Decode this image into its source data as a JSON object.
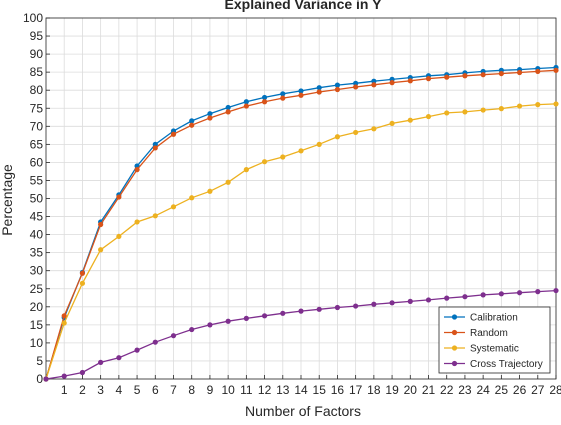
{
  "chart_data": {
    "type": "line",
    "title": "Explained Variance in Y",
    "xlabel": "Number of Factors",
    "ylabel": "Percentage",
    "xlim": [
      0,
      28
    ],
    "ylim": [
      0,
      100
    ],
    "x_ticks": [
      1,
      2,
      3,
      4,
      5,
      6,
      7,
      8,
      9,
      10,
      11,
      12,
      13,
      14,
      15,
      16,
      17,
      18,
      19,
      20,
      21,
      22,
      23,
      24,
      25,
      26,
      27,
      28
    ],
    "y_ticks": [
      0,
      5,
      10,
      15,
      20,
      25,
      30,
      35,
      40,
      45,
      50,
      55,
      60,
      65,
      70,
      75,
      80,
      85,
      90,
      95,
      100
    ],
    "grid": true,
    "legend_position": "bottom-right",
    "x": [
      0,
      1,
      2,
      3,
      4,
      5,
      6,
      7,
      8,
      9,
      10,
      11,
      12,
      13,
      14,
      15,
      16,
      17,
      18,
      19,
      20,
      21,
      22,
      23,
      24,
      25,
      26,
      27,
      28
    ],
    "series": [
      {
        "name": "Calibration",
        "color": "#0072BD",
        "values": [
          0,
          17,
          29.5,
          43.5,
          51,
          59,
          65,
          68.7,
          71.5,
          73.5,
          75.2,
          76.8,
          78,
          79,
          79.8,
          80.7,
          81.4,
          81.9,
          82.5,
          83,
          83.5,
          84,
          84.3,
          84.8,
          85.2,
          85.5,
          85.7,
          86,
          86.3
        ]
      },
      {
        "name": "Random",
        "color": "#D95319",
        "values": [
          0,
          17.5,
          29.3,
          42.8,
          50.4,
          58,
          64,
          67.8,
          70.3,
          72.3,
          74,
          75.6,
          76.8,
          77.8,
          78.6,
          79.5,
          80.2,
          80.9,
          81.5,
          82.1,
          82.6,
          83.2,
          83.6,
          84,
          84.3,
          84.6,
          84.9,
          85.2,
          85.5
        ]
      },
      {
        "name": "Systematic",
        "color": "#EDB120",
        "values": [
          0,
          15.5,
          26.5,
          35.8,
          39.5,
          43.5,
          45.2,
          47.7,
          50.2,
          52,
          54.5,
          58,
          60.2,
          61.5,
          63.2,
          65,
          67.1,
          68.3,
          69.3,
          70.8,
          71.7,
          72.7,
          73.7,
          74,
          74.5,
          74.9,
          75.6,
          76,
          76.2
        ]
      },
      {
        "name": "Cross Trajectory",
        "color": "#7E2F8E",
        "values": [
          0,
          0.8,
          1.8,
          4.6,
          5.9,
          8,
          10.2,
          12,
          13.7,
          15,
          16,
          16.8,
          17.5,
          18.2,
          18.8,
          19.3,
          19.8,
          20.2,
          20.7,
          21.1,
          21.5,
          21.9,
          22.4,
          22.8,
          23.3,
          23.6,
          23.9,
          24.2,
          24.5
        ]
      }
    ]
  }
}
